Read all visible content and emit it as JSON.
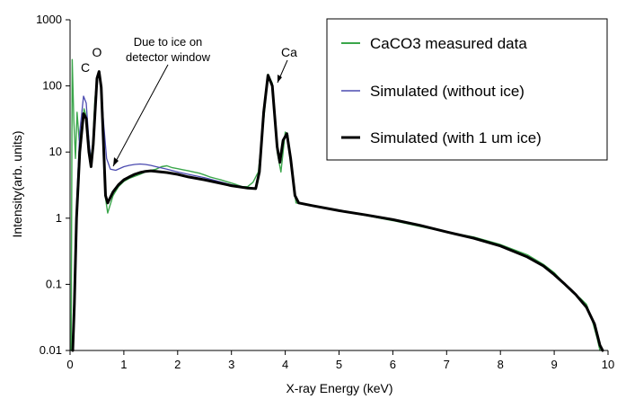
{
  "chart_data": {
    "type": "line",
    "xlabel": "X-ray Energy (keV)",
    "ylabel": "Intensity(arb. units)",
    "xlim": [
      0,
      10
    ],
    "ylim": [
      0.01,
      1000
    ],
    "yscale": "log",
    "x_ticks": [
      "0",
      "1",
      "2",
      "3",
      "4",
      "5",
      "6",
      "7",
      "8",
      "9",
      "10"
    ],
    "y_ticks": [
      "0.01",
      "0.1",
      "1",
      "10",
      "100",
      "1000"
    ],
    "grid": false,
    "legend_position": "top-right",
    "series": [
      {
        "name": "CaCO3 measured data",
        "color": "#3aa64a",
        "points": [
          [
            0.02,
            0.01
          ],
          [
            0.04,
            250
          ],
          [
            0.07,
            30
          ],
          [
            0.1,
            8
          ],
          [
            0.13,
            40
          ],
          [
            0.17,
            15
          ],
          [
            0.22,
            25
          ],
          [
            0.26,
            45
          ],
          [
            0.3,
            35
          ],
          [
            0.34,
            18
          ],
          [
            0.38,
            8
          ],
          [
            0.42,
            12
          ],
          [
            0.46,
            60
          ],
          [
            0.5,
            130
          ],
          [
            0.54,
            160
          ],
          [
            0.58,
            90
          ],
          [
            0.62,
            20
          ],
          [
            0.66,
            2
          ],
          [
            0.7,
            1.2
          ],
          [
            0.8,
            2.2
          ],
          [
            0.9,
            3
          ],
          [
            1.0,
            3.6
          ],
          [
            1.1,
            4
          ],
          [
            1.2,
            4.3
          ],
          [
            1.3,
            4.6
          ],
          [
            1.4,
            5
          ],
          [
            1.5,
            5.3
          ],
          [
            1.6,
            5.5
          ],
          [
            1.7,
            6
          ],
          [
            1.8,
            6.2
          ],
          [
            1.9,
            5.8
          ],
          [
            2.0,
            5.6
          ],
          [
            2.1,
            5.4
          ],
          [
            2.2,
            5.2
          ],
          [
            2.3,
            5
          ],
          [
            2.4,
            4.8
          ],
          [
            2.5,
            4.5
          ],
          [
            2.6,
            4.2
          ],
          [
            2.7,
            4
          ],
          [
            2.8,
            3.8
          ],
          [
            2.9,
            3.6
          ],
          [
            3.0,
            3.4
          ],
          [
            3.1,
            3.2
          ],
          [
            3.2,
            3
          ],
          [
            3.3,
            3
          ],
          [
            3.4,
            3.5
          ],
          [
            3.5,
            5
          ],
          [
            3.6,
            30
          ],
          [
            3.68,
            150
          ],
          [
            3.76,
            110
          ],
          [
            3.85,
            10
          ],
          [
            3.92,
            5
          ],
          [
            4.0,
            20
          ],
          [
            4.05,
            18
          ],
          [
            4.12,
            5
          ],
          [
            4.2,
            1.7
          ],
          [
            4.5,
            1.55
          ],
          [
            5.0,
            1.3
          ],
          [
            5.5,
            1.1
          ],
          [
            6.0,
            0.92
          ],
          [
            6.5,
            0.75
          ],
          [
            7.0,
            0.62
          ],
          [
            7.5,
            0.52
          ],
          [
            8.0,
            0.4
          ],
          [
            8.5,
            0.28
          ],
          [
            8.8,
            0.2
          ],
          [
            9.0,
            0.15
          ],
          [
            9.2,
            0.1
          ],
          [
            9.4,
            0.07
          ],
          [
            9.5,
            0.06
          ],
          [
            9.6,
            0.05
          ],
          [
            9.7,
            0.03
          ],
          [
            9.8,
            0.015
          ],
          [
            9.85,
            0.01
          ]
        ]
      },
      {
        "name": "Simulated (without ice)",
        "color": "#4b4bb0",
        "points": [
          [
            0.05,
            0.01
          ],
          [
            0.08,
            0.05
          ],
          [
            0.12,
            1.5
          ],
          [
            0.18,
            20
          ],
          [
            0.25,
            70
          ],
          [
            0.3,
            55
          ],
          [
            0.35,
            15
          ],
          [
            0.39,
            7
          ],
          [
            0.43,
            15
          ],
          [
            0.5,
            140
          ],
          [
            0.54,
            160
          ],
          [
            0.58,
            90
          ],
          [
            0.62,
            30
          ],
          [
            0.68,
            8
          ],
          [
            0.75,
            5.5
          ],
          [
            0.85,
            5.3
          ],
          [
            1.0,
            6
          ],
          [
            1.1,
            6.3
          ],
          [
            1.2,
            6.5
          ],
          [
            1.3,
            6.6
          ],
          [
            1.4,
            6.5
          ],
          [
            1.5,
            6.3
          ],
          [
            1.6,
            6
          ],
          [
            1.8,
            5.5
          ],
          [
            2.0,
            5
          ],
          [
            2.2,
            4.6
          ],
          [
            2.5,
            4.1
          ],
          [
            3.0,
            3.2
          ],
          [
            3.3,
            2.9
          ],
          [
            3.45,
            2.85
          ],
          [
            3.52,
            5
          ],
          [
            3.6,
            40
          ],
          [
            3.68,
            140
          ],
          [
            3.76,
            100
          ],
          [
            3.85,
            12
          ],
          [
            3.9,
            7
          ],
          [
            3.96,
            15
          ],
          [
            4.03,
            19
          ],
          [
            4.1,
            8
          ],
          [
            4.18,
            2.2
          ],
          [
            4.25,
            1.7
          ],
          [
            4.5,
            1.55
          ],
          [
            5.0,
            1.3
          ],
          [
            5.5,
            1.12
          ],
          [
            6.0,
            0.95
          ],
          [
            6.5,
            0.78
          ],
          [
            7.0,
            0.62
          ],
          [
            7.5,
            0.5
          ],
          [
            8.0,
            0.38
          ],
          [
            8.5,
            0.26
          ],
          [
            8.8,
            0.19
          ],
          [
            9.0,
            0.14
          ],
          [
            9.2,
            0.1
          ],
          [
            9.4,
            0.07
          ],
          [
            9.6,
            0.045
          ],
          [
            9.75,
            0.025
          ],
          [
            9.85,
            0.012
          ],
          [
            9.9,
            0.01
          ]
        ]
      },
      {
        "name": "Simulated (with 1 um ice)",
        "color": "#000000",
        "points": [
          [
            0.05,
            0.01
          ],
          [
            0.08,
            0.05
          ],
          [
            0.12,
            1
          ],
          [
            0.18,
            10
          ],
          [
            0.25,
            38
          ],
          [
            0.3,
            32
          ],
          [
            0.35,
            10
          ],
          [
            0.39,
            6
          ],
          [
            0.43,
            13
          ],
          [
            0.5,
            130
          ],
          [
            0.54,
            165
          ],
          [
            0.58,
            95
          ],
          [
            0.62,
            15
          ],
          [
            0.66,
            2.2
          ],
          [
            0.7,
            1.7
          ],
          [
            0.8,
            2.5
          ],
          [
            0.9,
            3.2
          ],
          [
            1.0,
            3.8
          ],
          [
            1.1,
            4.2
          ],
          [
            1.2,
            4.6
          ],
          [
            1.3,
            4.9
          ],
          [
            1.4,
            5.1
          ],
          [
            1.5,
            5.2
          ],
          [
            1.6,
            5.1
          ],
          [
            1.8,
            4.9
          ],
          [
            2.0,
            4.6
          ],
          [
            2.2,
            4.2
          ],
          [
            2.5,
            3.8
          ],
          [
            3.0,
            3.1
          ],
          [
            3.3,
            2.85
          ],
          [
            3.45,
            2.8
          ],
          [
            3.52,
            5
          ],
          [
            3.6,
            40
          ],
          [
            3.68,
            145
          ],
          [
            3.76,
            100
          ],
          [
            3.85,
            12
          ],
          [
            3.9,
            7
          ],
          [
            3.96,
            15
          ],
          [
            4.03,
            19
          ],
          [
            4.1,
            8
          ],
          [
            4.18,
            2.2
          ],
          [
            4.25,
            1.7
          ],
          [
            4.5,
            1.55
          ],
          [
            5.0,
            1.3
          ],
          [
            5.5,
            1.12
          ],
          [
            6.0,
            0.95
          ],
          [
            6.5,
            0.78
          ],
          [
            7.0,
            0.62
          ],
          [
            7.5,
            0.5
          ],
          [
            8.0,
            0.38
          ],
          [
            8.5,
            0.26
          ],
          [
            8.8,
            0.19
          ],
          [
            9.0,
            0.14
          ],
          [
            9.2,
            0.1
          ],
          [
            9.4,
            0.07
          ],
          [
            9.6,
            0.045
          ],
          [
            9.75,
            0.025
          ],
          [
            9.85,
            0.012
          ],
          [
            9.9,
            0.01
          ]
        ]
      }
    ],
    "annotations": {
      "c": "C",
      "o": "O",
      "ca": "Ca",
      "ice_line1": "Due to ice on",
      "ice_line2": "detector window"
    }
  }
}
